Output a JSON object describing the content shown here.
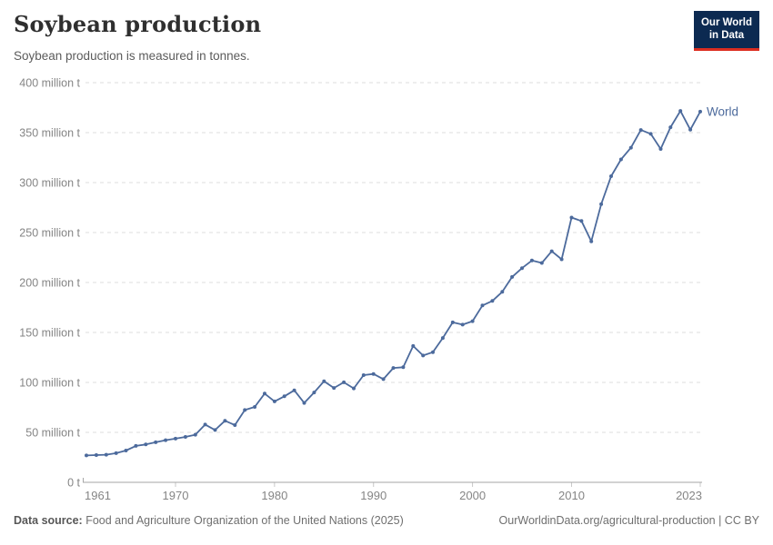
{
  "header": {
    "title": "Soybean production",
    "subtitle": "Soybean production is measured in tonnes.",
    "logo": {
      "line1": "Our World",
      "line2": "in Data",
      "bg_color": "#0c2a51",
      "accent_color": "#dc2d20"
    }
  },
  "chart_data": {
    "type": "line",
    "title": "Soybean production",
    "unit": "tonnes",
    "xlabel": "",
    "ylabel": "",
    "xlim": [
      1961,
      2023
    ],
    "ylim": [
      0,
      400
    ],
    "grid": "horizontal-dashed",
    "legend": "end-of-line-label",
    "x_ticks": [
      1961,
      1970,
      1980,
      1990,
      2000,
      2010,
      2023
    ],
    "y_ticks": [
      0,
      50,
      100,
      150,
      200,
      250,
      300,
      350,
      400
    ],
    "y_tick_labels": [
      "0 t",
      "50 million t",
      "100 million t",
      "150 million t",
      "200 million t",
      "250 million t",
      "300 million t",
      "350 million t",
      "400 million t"
    ],
    "years": [
      1961,
      1962,
      1963,
      1964,
      1965,
      1966,
      1967,
      1968,
      1969,
      1970,
      1971,
      1972,
      1973,
      1974,
      1975,
      1976,
      1977,
      1978,
      1979,
      1980,
      1981,
      1982,
      1983,
      1984,
      1985,
      1986,
      1987,
      1988,
      1989,
      1990,
      1991,
      1992,
      1993,
      1994,
      1995,
      1996,
      1997,
      1998,
      1999,
      2000,
      2001,
      2002,
      2003,
      2004,
      2005,
      2006,
      2007,
      2008,
      2009,
      2010,
      2011,
      2012,
      2013,
      2014,
      2015,
      2016,
      2017,
      2018,
      2019,
      2020,
      2021,
      2022,
      2023
    ],
    "series": [
      {
        "name": "World",
        "color": "#4c6a9c",
        "values": [
          26.88,
          27.27,
          27.64,
          29.19,
          31.8,
          36.44,
          37.87,
          40.08,
          42.21,
          43.7,
          45.44,
          47.68,
          57.85,
          52.36,
          61.6,
          57.28,
          72.37,
          75.45,
          88.85,
          81.04,
          86.13,
          92.06,
          79.5,
          89.95,
          101.16,
          94.45,
          100.1,
          93.97,
          107.25,
          108.45,
          103.31,
          114.44,
          115.19,
          136.45,
          126.95,
          130.23,
          144.42,
          160.1,
          157.8,
          161.29,
          177.02,
          181.55,
          190.65,
          205.53,
          214.35,
          221.97,
          219.58,
          231.26,
          223.18,
          265.04,
          261.58,
          241.18,
          278.32,
          306.37,
          323.2,
          334.89,
          352.64,
          348.71,
          333.67,
          355.32,
          371.69,
          352.88,
          370.96
        ]
      }
    ],
    "colors": {
      "line": "#4c6a9c",
      "grid": "#dddddd",
      "axis": "#a6a6a6",
      "tick": "#c8c8c8",
      "tick_label": "#858585"
    }
  },
  "footer": {
    "source_label": "Data source:",
    "source_text": "Food and Agriculture Organization of the United Nations (2025)",
    "credit": "OurWorldinData.org/agricultural-production | CC BY"
  }
}
